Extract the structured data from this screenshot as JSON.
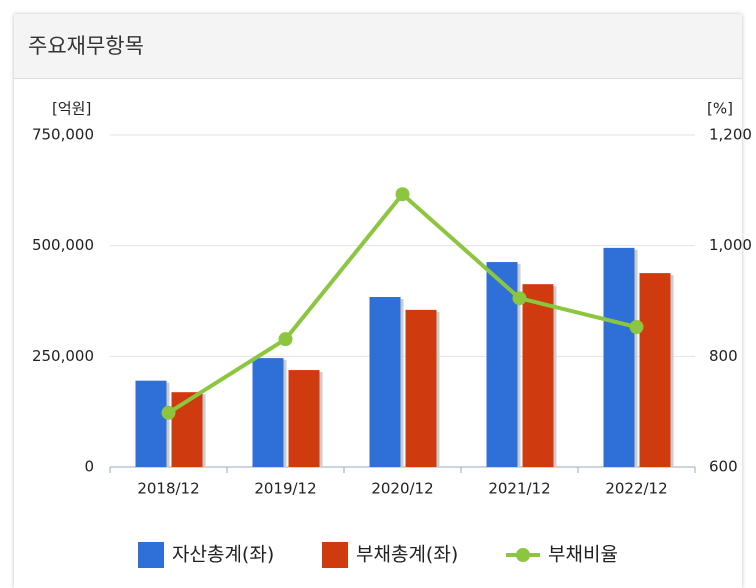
{
  "header": {
    "title": "주요재무항목"
  },
  "chart_data": {
    "type": "bar",
    "y_unit": "[억원]",
    "y2_unit": "[%]",
    "categories": [
      "2018/12",
      "2019/12",
      "2020/12",
      "2021/12",
      "2022/12"
    ],
    "series": [
      {
        "name": "자산총계(좌)",
        "color": "#2f6fd8",
        "values": [
          195000,
          246000,
          384000,
          463000,
          495000
        ]
      },
      {
        "name": "부채총계(좌)",
        "color": "#d03a0f",
        "values": [
          169000,
          219000,
          355000,
          413000,
          438000
        ]
      },
      {
        "name": "부채비율",
        "color": "#8cc63f",
        "type": "line",
        "axis": "y2",
        "values": [
          698,
          831,
          1093,
          905,
          853
        ]
      }
    ],
    "ylim": [
      0,
      750000
    ],
    "yticks": [
      0,
      {
        "value": 250000,
        "label": "250,000"
      },
      {
        "value": 500000,
        "label": "500,000"
      },
      {
        "value": 750000,
        "label": "750,000"
      }
    ],
    "y2lim": [
      600,
      1200
    ],
    "y2ticks": [
      600,
      800,
      {
        "value": 1000,
        "label": "1,000"
      },
      {
        "value": 1200,
        "label": "1,200"
      }
    ],
    "grid": true
  }
}
